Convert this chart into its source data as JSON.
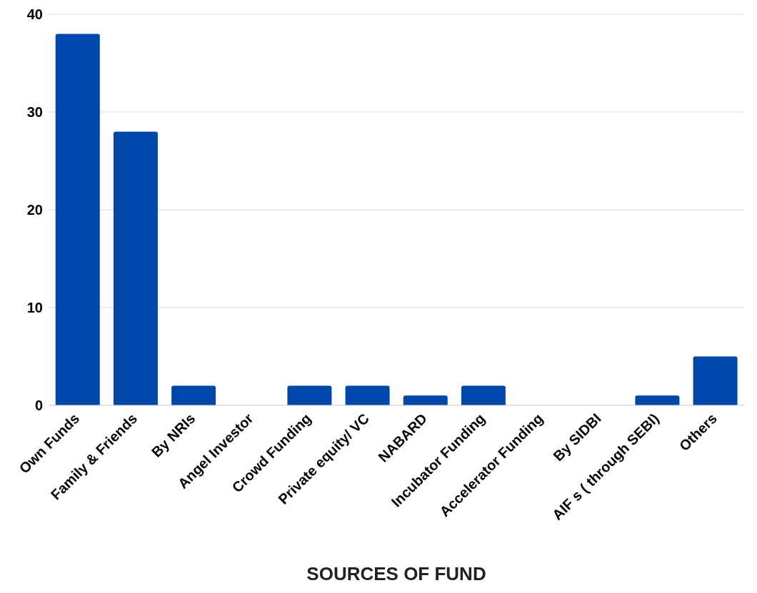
{
  "chart_data": {
    "type": "bar",
    "xlabel": "SOURCES OF FUND",
    "categories": [
      "Own Funds",
      "Family & Friends",
      "By NRIs",
      "Angel Investor",
      "Crowd Funding",
      "Private equity/ VC",
      "NABARD",
      "Incubator Funding",
      "Accelerator Funding",
      "By SIDBI",
      "AIF s ( through SEBI)",
      "Others"
    ],
    "values": [
      38,
      28,
      2,
      0,
      2,
      2,
      1,
      2,
      0,
      0,
      1,
      5
    ],
    "color": "#0047ab",
    "ylim": [
      0,
      40
    ],
    "yticks": [
      0,
      10,
      20,
      30,
      40
    ],
    "grid": "y"
  }
}
